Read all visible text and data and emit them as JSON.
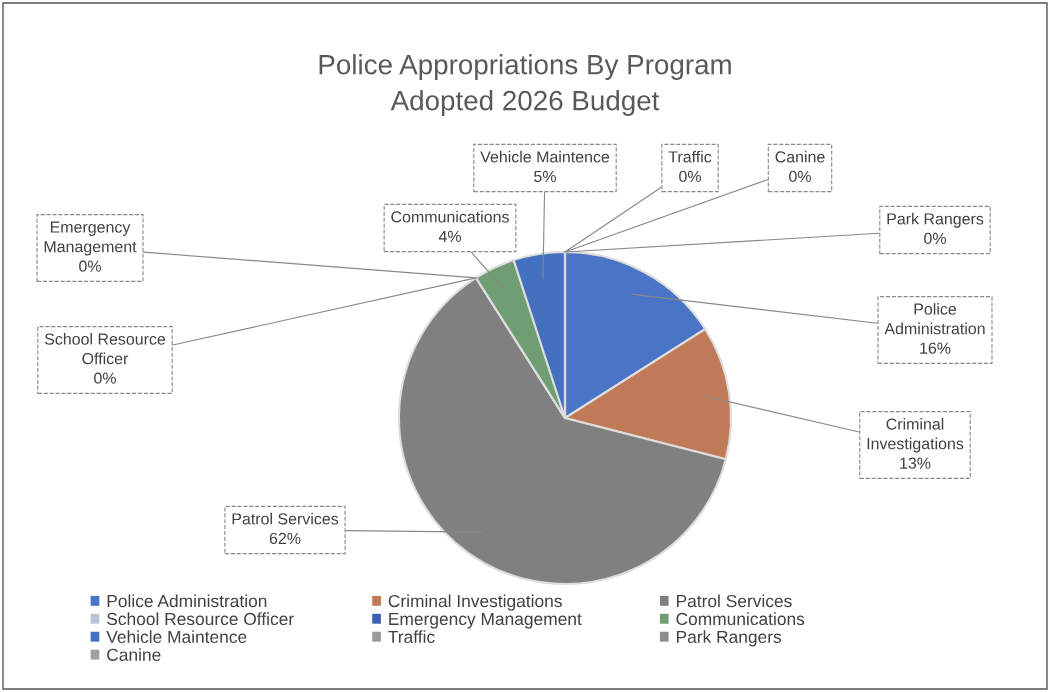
{
  "chart_data": {
    "type": "pie",
    "title": "Police Appropriations By Program\nAdopted 2026 Budget",
    "categories": [
      "Police Administration",
      "Criminal Investigations",
      "Patrol Services",
      "School Resource Officer",
      "Emergency Management",
      "Communications",
      "Vehicle Maintence",
      "Traffic",
      "Park Rangers",
      "Canine"
    ],
    "values": [
      16,
      13,
      62,
      0,
      0,
      4,
      5,
      0,
      0,
      0
    ],
    "colors": [
      "#4a74c6",
      "#c07a58",
      "#808080",
      "#b8c4d8",
      "#3f62b0",
      "#6e9e72",
      "#4470c0",
      "#9a9a9a",
      "#8c8c8c",
      "#a0a0a0"
    ],
    "value_labels": [
      "16%",
      "13%",
      "62%",
      "0%",
      "0%",
      "4%",
      "5%",
      "0%",
      "0%",
      "0%"
    ],
    "legend": "bottom"
  }
}
